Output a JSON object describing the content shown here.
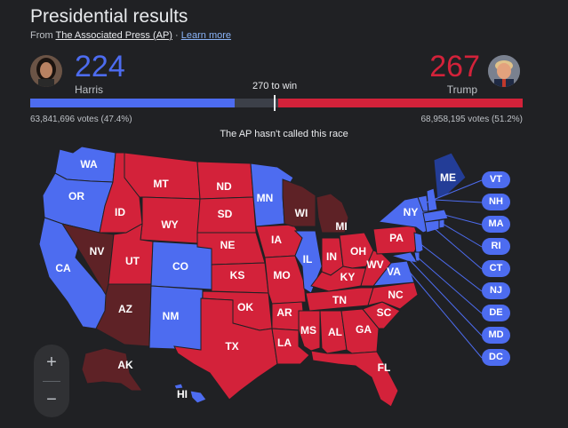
{
  "header": {
    "title": "Presidential results",
    "source_prefix": "From ",
    "source_name": "The Associated Press (AP)",
    "source_sep": " · ",
    "learn_more": "Learn more"
  },
  "candidates": {
    "harris": {
      "name": "Harris",
      "electoral": "224",
      "votes": "63,841,696 votes (47.4%)",
      "color": "#4d6cf0"
    },
    "trump": {
      "name": "Trump",
      "electoral": "267",
      "votes": "68,958,195 votes (51.2%)",
      "color": "#d3223a"
    }
  },
  "race": {
    "to_win": "270 to win",
    "status": "The AP hasn't called this race",
    "electoral_total": 538,
    "harris_share": 0.416,
    "trump_share": 0.496
  },
  "colors": {
    "dem": "#4d6cf0",
    "dem_lean": "#233d97",
    "rep": "#d3223a",
    "rep_lean": "#5e2226",
    "background": "#202124"
  },
  "states": {
    "WA": "WA",
    "OR": "OR",
    "CA": "CA",
    "NV": "NV",
    "ID": "ID",
    "MT": "MT",
    "WY": "WY",
    "UT": "UT",
    "AZ": "AZ",
    "CO": "CO",
    "NM": "NM",
    "ND": "ND",
    "SD": "SD",
    "NE": "NE",
    "KS": "KS",
    "OK": "OK",
    "TX": "TX",
    "MN": "MN",
    "IA": "IA",
    "MO": "MO",
    "AR": "AR",
    "LA": "LA",
    "WI": "WI",
    "IL": "IL",
    "MI": "MI",
    "IN": "IN",
    "OH": "OH",
    "KY": "KY",
    "TN": "TN",
    "MS": "MS",
    "AL": "AL",
    "GA": "GA",
    "FL": "FL",
    "SC": "SC",
    "NC": "NC",
    "VA": "VA",
    "WV": "WV",
    "PA": "PA",
    "NY": "NY",
    "ME": "ME",
    "AK": "AK",
    "HI": "HI"
  },
  "small_states": [
    "VT",
    "NH",
    "MA",
    "RI",
    "CT",
    "NJ",
    "DE",
    "MD",
    "DC"
  ],
  "map_controls": {
    "zoom_in": "+",
    "zoom_out": "−"
  }
}
